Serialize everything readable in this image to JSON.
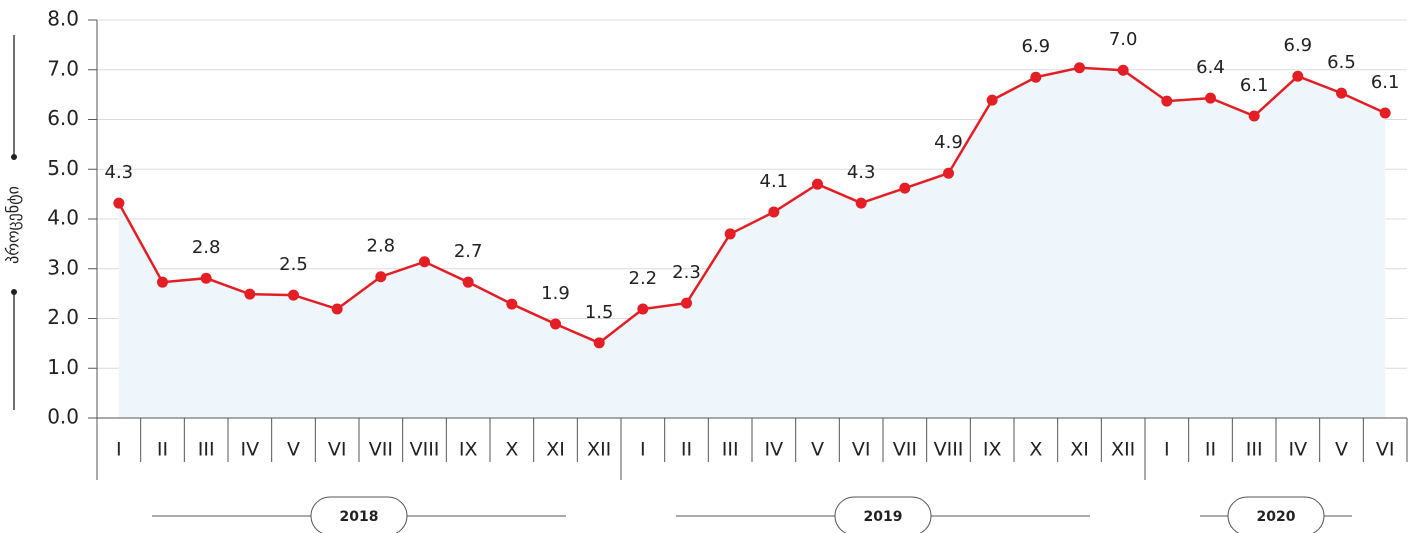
{
  "chart_data": {
    "type": "line",
    "y_label": "პროცენტი",
    "category_groups": [
      {
        "label": "2018",
        "categories": [
          "I",
          "II",
          "III",
          "IV",
          "V",
          "VI",
          "VII",
          "VIII",
          "IX",
          "X",
          "XI",
          "XII"
        ]
      },
      {
        "label": "2019",
        "categories": [
          "I",
          "II",
          "III",
          "IV",
          "V",
          "VI",
          "VII",
          "VIII",
          "IX",
          "X",
          "XI",
          "XII"
        ]
      },
      {
        "label": "2020",
        "categories": [
          "I",
          "II",
          "III",
          "IV",
          "V",
          "VI"
        ]
      }
    ],
    "series": [
      {
        "color": "#e31e24",
        "values": [
          4.32,
          2.73,
          2.81,
          2.49,
          2.47,
          2.19,
          2.84,
          3.14,
          2.73,
          2.29,
          1.89,
          1.51,
          2.19,
          2.31,
          3.7,
          4.14,
          4.7,
          4.32,
          4.62,
          4.92,
          6.39,
          6.85,
          7.04,
          6.99,
          6.37,
          6.43,
          6.07,
          6.87,
          6.53,
          6.13
        ],
        "value_labels": [
          "4.3",
          null,
          "2.8",
          null,
          "2.5",
          null,
          "2.8",
          null,
          "2.7",
          null,
          "1.9",
          "1.5",
          "2.2",
          "2.3",
          null,
          "4.1",
          null,
          "4.3",
          null,
          "4.9",
          null,
          "6.9",
          null,
          "7.0",
          null,
          "6.4",
          "6.1",
          "6.9",
          "6.5",
          "6.1"
        ]
      }
    ],
    "area_color": "#eef6fc",
    "ylim": [
      0,
      8
    ],
    "yticks": [
      {
        "value": 0,
        "label": "0.0"
      },
      {
        "value": 1,
        "label": "1.0"
      },
      {
        "value": 2,
        "label": "2.0"
      },
      {
        "value": 3,
        "label": "3.0"
      },
      {
        "value": 4,
        "label": "4.0"
      },
      {
        "value": 5,
        "label": "5.0"
      },
      {
        "value": 6,
        "label": "6.0"
      },
      {
        "value": 7,
        "label": "7.0"
      },
      {
        "value": 8,
        "label": "8.0"
      }
    ],
    "grid": true
  }
}
